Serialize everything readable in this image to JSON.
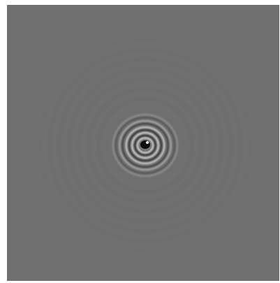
{
  "image": {
    "background_color": "#6f6f6f",
    "frame_color": "#ffffff",
    "pattern": "concentric-interference-rings",
    "ring_light_color": "#d8d8d8",
    "ring_dark_color": "#2a2a2a",
    "core_color": "#0e0e0e"
  }
}
